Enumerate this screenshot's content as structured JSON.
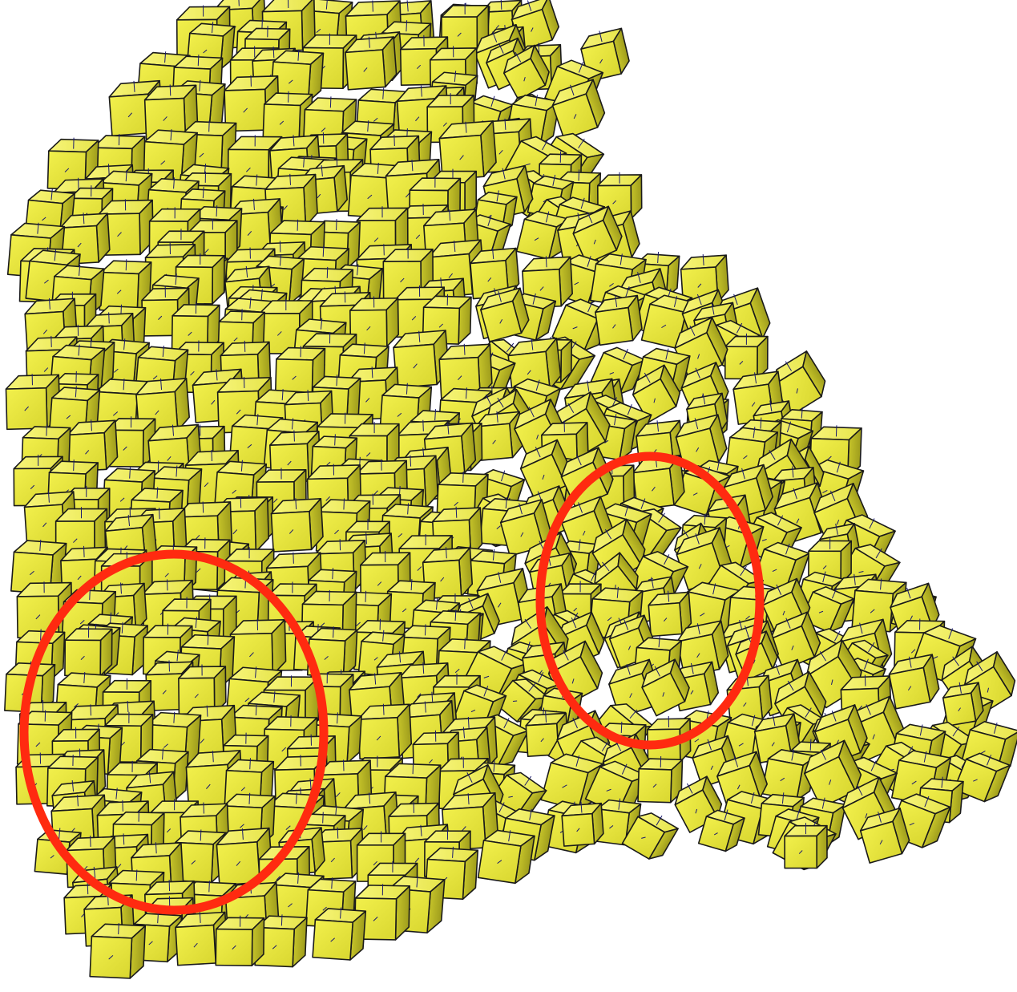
{
  "figure": {
    "subject": "cube-mesh",
    "cube_color": "#E8E83A",
    "cube_top_color": "#F5F36A",
    "cube_dark_color": "#B0AE22",
    "edge_color": "#1A1A1A",
    "normal_color": "#1A1A6E",
    "highlight_color": "#FF2A10",
    "highlight_count": 2,
    "highlight_shape": "ellipse"
  }
}
